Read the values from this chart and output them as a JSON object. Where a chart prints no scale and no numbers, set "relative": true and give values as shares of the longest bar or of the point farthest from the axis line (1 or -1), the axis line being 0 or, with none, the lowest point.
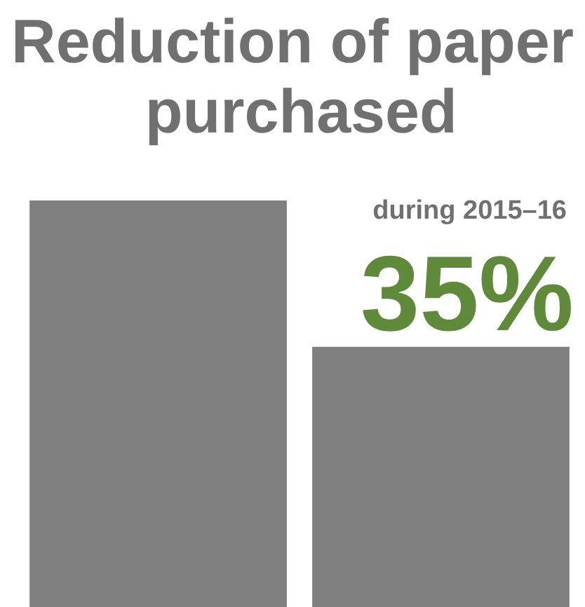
{
  "chart_data": {
    "type": "bar",
    "title": "Reduction of paper purchased",
    "subtitle": "during 2015–16",
    "annotations": [
      "35%"
    ],
    "categories": [
      null,
      null
    ],
    "values": [
      1,
      0.64
    ],
    "color": "#808080",
    "relative": true
  }
}
